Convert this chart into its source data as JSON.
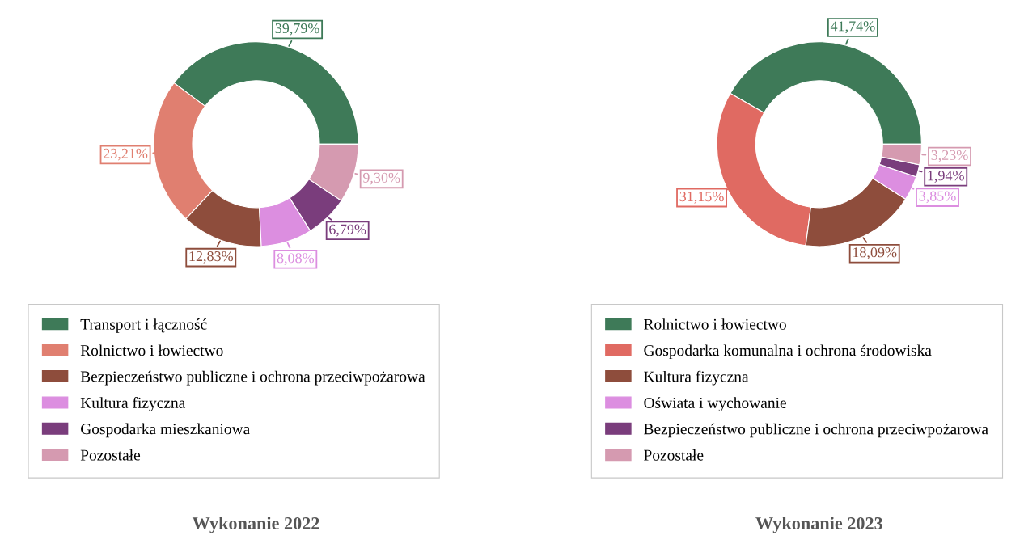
{
  "chart_data": [
    {
      "type": "donut",
      "title": "Wykonanie 2022",
      "legend": "bottom",
      "data_labels": true,
      "categories": [
        "Transport i łączność",
        "Rolnictwo i łowiectwo",
        "Bezpieczeństwo publiczne i ochrona przeciwpożarowa",
        "Kultura fizyczna",
        "Gospodarka mieszkaniowa",
        "Pozostałe"
      ],
      "values": [
        39.79,
        23.21,
        12.83,
        8.08,
        6.79,
        9.3
      ],
      "value_labels": [
        "39,79%",
        "23,21%",
        "12,83%",
        "8,08%",
        "6,79%",
        "9,30%"
      ],
      "colors": [
        "#3e7a58",
        "#e07f70",
        "#8e4d3c",
        "#dc8ee0",
        "#7a3d7c",
        "#d59ab0"
      ]
    },
    {
      "type": "donut",
      "title": "Wykonanie 2023",
      "legend": "bottom",
      "data_labels": true,
      "categories": [
        "Rolnictwo i łowiectwo",
        "Gospodarka komunalna i ochrona środowiska",
        "Kultura fizyczna",
        "Oświata i wychowanie",
        "Bezpieczeństwo publiczne i ochrona przeciwpożarowa",
        "Pozostałe"
      ],
      "values": [
        41.74,
        31.15,
        18.09,
        3.85,
        1.94,
        3.23
      ],
      "value_labels": [
        "41,74%",
        "31,15%",
        "18,09%",
        "3,85%",
        "1,94%",
        "3,23%"
      ],
      "colors": [
        "#3e7a58",
        "#e06a62",
        "#8e4d3c",
        "#dc8ee0",
        "#7a3d7c",
        "#d59ab0"
      ]
    }
  ]
}
